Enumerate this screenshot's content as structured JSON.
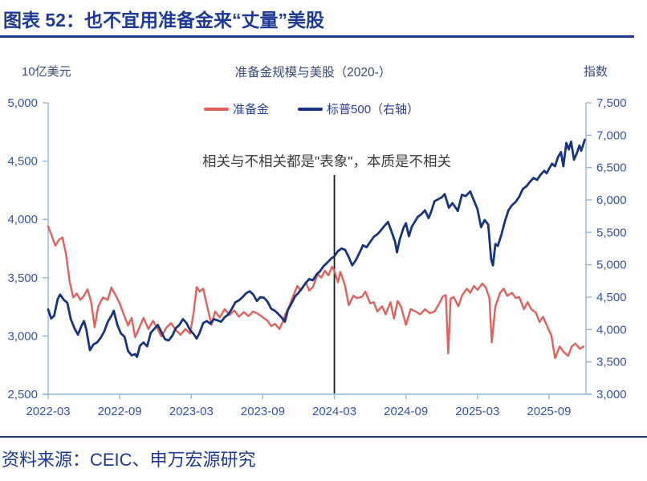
{
  "header": {
    "title": "图表 52：也不宜用准备金来“丈量”美股"
  },
  "chart": {
    "title": "准备金规模与美股（2020-）",
    "left_axis_unit": "10亿美元",
    "right_axis_unit": "指数",
    "annotation": "相关与不相关都是\"表象\"，本质是不相关",
    "legend": [
      {
        "label": "准备金",
        "color": "#E0605C"
      },
      {
        "label": "标普500（右轴）",
        "color": "#16357E"
      }
    ]
  },
  "chart_data": {
    "type": "line",
    "title": "准备金规模与美股（2020-）",
    "grid": false,
    "legend_position": "top-center",
    "x_axis": {
      "tick_labels": [
        "2022-03",
        "2022-09",
        "2023-03",
        "2023-09",
        "2024-03",
        "2024-09",
        "2025-03",
        "2025-09"
      ],
      "tick_months": [
        0,
        6,
        12,
        18,
        24,
        30,
        36,
        42
      ],
      "month_zero": "2022-03",
      "month_span": 45.1
    },
    "left_axis": {
      "label": "10亿美元",
      "min": 2500,
      "max": 5000,
      "tick_values": [
        5000,
        4500,
        4000,
        3500,
        3000,
        2500
      ],
      "tick_labels": [
        "5,000",
        "4,500",
        "4,000",
        "3,500",
        "3,000",
        "2,500"
      ]
    },
    "right_axis": {
      "label": "指数",
      "min": 3000,
      "max": 7500,
      "tick_values": [
        7500,
        7000,
        6500,
        6000,
        5500,
        5000,
        4500,
        4000,
        3500,
        3000
      ],
      "tick_labels": [
        "7,500",
        "7,000",
        "6,500",
        "6,000",
        "5,500",
        "5,000",
        "4,500",
        "4,000",
        "3,500",
        "3,000"
      ]
    },
    "event_line": {
      "month": 24,
      "at_label": "2024-03",
      "color": "#1a1a1a"
    },
    "axis_color": "#8FB8DA",
    "series": [
      {
        "key": "reserves",
        "name": "准备金",
        "axis": "left",
        "color": "#E0605C",
        "width": 2.4,
        "points": [
          [
            0,
            3940
          ],
          [
            0.3,
            3860
          ],
          [
            0.6,
            3775
          ],
          [
            0.9,
            3825
          ],
          [
            1.2,
            3845
          ],
          [
            1.5,
            3700
          ],
          [
            1.8,
            3470
          ],
          [
            2.1,
            3330
          ],
          [
            2.4,
            3365
          ],
          [
            2.7,
            3310
          ],
          [
            3,
            3345
          ],
          [
            3.3,
            3400
          ],
          [
            3.6,
            3295
          ],
          [
            3.9,
            3075
          ],
          [
            4.2,
            3255
          ],
          [
            4.6,
            3330
          ],
          [
            5,
            3310
          ],
          [
            5.3,
            3415
          ],
          [
            5.6,
            3360
          ],
          [
            6,
            3280
          ],
          [
            6.3,
            3195
          ],
          [
            6.7,
            3090
          ],
          [
            7,
            3155
          ],
          [
            7.3,
            2990
          ],
          [
            7.7,
            3085
          ],
          [
            8,
            3155
          ],
          [
            8.4,
            3060
          ],
          [
            8.8,
            3130
          ],
          [
            9.1,
            3075
          ],
          [
            9.5,
            2995
          ],
          [
            9.9,
            3070
          ],
          [
            10.3,
            3110
          ],
          [
            10.7,
            3050
          ],
          [
            11.1,
            3010
          ],
          [
            11.5,
            3060
          ],
          [
            11.9,
            3020
          ],
          [
            12.2,
            3200
          ],
          [
            12.45,
            3420
          ],
          [
            12.7,
            3380
          ],
          [
            13,
            3405
          ],
          [
            13.3,
            3270
          ],
          [
            13.7,
            3095
          ],
          [
            14,
            3210
          ],
          [
            14.4,
            3160
          ],
          [
            14.8,
            3230
          ],
          [
            15.2,
            3180
          ],
          [
            15.6,
            3220
          ],
          [
            16,
            3165
          ],
          [
            16.4,
            3205
          ],
          [
            16.8,
            3170
          ],
          [
            17.2,
            3210
          ],
          [
            17.6,
            3190
          ],
          [
            18,
            3160
          ],
          [
            18.4,
            3130
          ],
          [
            18.7,
            3085
          ],
          [
            19,
            3105
          ],
          [
            19.4,
            3060
          ],
          [
            19.7,
            3130
          ],
          [
            19.9,
            3190
          ],
          [
            20.2,
            3250
          ],
          [
            20.5,
            3330
          ],
          [
            20.9,
            3430
          ],
          [
            21.2,
            3390
          ],
          [
            21.6,
            3460
          ],
          [
            21.9,
            3390
          ],
          [
            22.2,
            3420
          ],
          [
            22.6,
            3530
          ],
          [
            22.9,
            3500
          ],
          [
            23.2,
            3560
          ],
          [
            23.5,
            3520
          ],
          [
            23.8,
            3595
          ],
          [
            24,
            3560
          ],
          [
            24.3,
            3460
          ],
          [
            24.5,
            3550
          ],
          [
            24.9,
            3430
          ],
          [
            25.2,
            3265
          ],
          [
            25.6,
            3345
          ],
          [
            25.9,
            3325
          ],
          [
            26.3,
            3335
          ],
          [
            26.6,
            3380
          ],
          [
            27,
            3280
          ],
          [
            27.3,
            3290
          ],
          [
            27.6,
            3210
          ],
          [
            28,
            3255
          ],
          [
            28.3,
            3185
          ],
          [
            28.7,
            3290
          ],
          [
            29,
            3150
          ],
          [
            29.3,
            3300
          ],
          [
            29.6,
            3250
          ],
          [
            30,
            3095
          ],
          [
            30.4,
            3230
          ],
          [
            30.8,
            3210
          ],
          [
            31.2,
            3185
          ],
          [
            31.6,
            3230
          ],
          [
            32,
            3195
          ],
          [
            32.4,
            3210
          ],
          [
            32.8,
            3280
          ],
          [
            33.1,
            3340
          ],
          [
            33.35,
            3350
          ],
          [
            33.55,
            2850
          ],
          [
            33.75,
            3320
          ],
          [
            34,
            3335
          ],
          [
            34.4,
            3255
          ],
          [
            34.7,
            3345
          ],
          [
            35.1,
            3405
          ],
          [
            35.4,
            3370
          ],
          [
            35.7,
            3430
          ],
          [
            36,
            3395
          ],
          [
            36.4,
            3450
          ],
          [
            36.7,
            3415
          ],
          [
            37,
            3325
          ],
          [
            37.2,
            2945
          ],
          [
            37.5,
            3255
          ],
          [
            37.9,
            3370
          ],
          [
            38.2,
            3405
          ],
          [
            38.5,
            3345
          ],
          [
            38.9,
            3370
          ],
          [
            39.2,
            3325
          ],
          [
            39.5,
            3335
          ],
          [
            39.9,
            3230
          ],
          [
            40.2,
            3290
          ],
          [
            40.5,
            3230
          ],
          [
            40.9,
            3200
          ],
          [
            41.2,
            3120
          ],
          [
            41.5,
            3165
          ],
          [
            41.9,
            3070
          ],
          [
            42.2,
            3005
          ],
          [
            42.5,
            2810
          ],
          [
            42.9,
            2910
          ],
          [
            43.2,
            2865
          ],
          [
            43.6,
            2830
          ],
          [
            43.9,
            2910
          ],
          [
            44.2,
            2935
          ],
          [
            44.6,
            2890
          ],
          [
            44.9,
            2910
          ]
        ]
      },
      {
        "key": "sp500",
        "name": "标普500（右轴）",
        "axis": "right",
        "color": "#16357E",
        "width": 2.8,
        "points": [
          [
            0,
            4310
          ],
          [
            0.25,
            4170
          ],
          [
            0.5,
            4210
          ],
          [
            0.8,
            4470
          ],
          [
            1,
            4540
          ],
          [
            1.3,
            4460
          ],
          [
            1.6,
            4415
          ],
          [
            1.9,
            4160
          ],
          [
            2.2,
            4020
          ],
          [
            2.5,
            3920
          ],
          [
            2.8,
            4060
          ],
          [
            3,
            4130
          ],
          [
            3.2,
            4000
          ],
          [
            3.5,
            3680
          ],
          [
            3.8,
            3770
          ],
          [
            4.1,
            3800
          ],
          [
            4.4,
            3870
          ],
          [
            4.7,
            3970
          ],
          [
            5,
            4120
          ],
          [
            5.3,
            4210
          ],
          [
            5.5,
            4290
          ],
          [
            5.8,
            4070
          ],
          [
            6.1,
            3940
          ],
          [
            6.4,
            3890
          ],
          [
            6.7,
            3670
          ],
          [
            7,
            3600
          ],
          [
            7.3,
            3620
          ],
          [
            7.45,
            3577
          ],
          [
            7.7,
            3750
          ],
          [
            8,
            3800
          ],
          [
            8.3,
            3740
          ],
          [
            8.6,
            3950
          ],
          [
            8.9,
            4010
          ],
          [
            9.2,
            4070
          ],
          [
            9.5,
            3960
          ],
          [
            9.8,
            3850
          ],
          [
            10.1,
            3830
          ],
          [
            10.4,
            3900
          ],
          [
            10.7,
            4020
          ],
          [
            11,
            4070
          ],
          [
            11.3,
            4160
          ],
          [
            11.6,
            4100
          ],
          [
            11.9,
            3990
          ],
          [
            12.2,
            3930
          ],
          [
            12.45,
            3860
          ],
          [
            12.7,
            3950
          ],
          [
            13,
            4100
          ],
          [
            13.3,
            4130
          ],
          [
            13.6,
            4090
          ],
          [
            13.9,
            4160
          ],
          [
            14.2,
            4140
          ],
          [
            14.5,
            4120
          ],
          [
            14.8,
            4190
          ],
          [
            15.1,
            4230
          ],
          [
            15.4,
            4320
          ],
          [
            15.7,
            4420
          ],
          [
            16,
            4450
          ],
          [
            16.3,
            4500
          ],
          [
            16.6,
            4560
          ],
          [
            16.9,
            4590
          ],
          [
            17.2,
            4540
          ],
          [
            17.5,
            4440
          ],
          [
            17.8,
            4500
          ],
          [
            18.1,
            4490
          ],
          [
            18.4,
            4430
          ],
          [
            18.7,
            4320
          ],
          [
            19,
            4290
          ],
          [
            19.3,
            4240
          ],
          [
            19.6,
            4180
          ],
          [
            19.85,
            4120
          ],
          [
            20.1,
            4300
          ],
          [
            20.4,
            4400
          ],
          [
            20.7,
            4510
          ],
          [
            21,
            4570
          ],
          [
            21.3,
            4640
          ],
          [
            21.6,
            4720
          ],
          [
            21.9,
            4780
          ],
          [
            22.2,
            4760
          ],
          [
            22.5,
            4850
          ],
          [
            22.8,
            4900
          ],
          [
            23.1,
            4980
          ],
          [
            23.4,
            5030
          ],
          [
            23.7,
            5090
          ],
          [
            24,
            5130
          ],
          [
            24.3,
            5210
          ],
          [
            24.6,
            5250
          ],
          [
            24.9,
            5230
          ],
          [
            25.2,
            5120
          ],
          [
            25.5,
            4990
          ],
          [
            25.8,
            5070
          ],
          [
            26.1,
            5180
          ],
          [
            26.4,
            5300
          ],
          [
            26.7,
            5270
          ],
          [
            27,
            5350
          ],
          [
            27.3,
            5430
          ],
          [
            27.6,
            5470
          ],
          [
            27.9,
            5530
          ],
          [
            28.2,
            5600
          ],
          [
            28.5,
            5660
          ],
          [
            28.8,
            5510
          ],
          [
            29.1,
            5350
          ],
          [
            29.25,
            5190
          ],
          [
            29.5,
            5400
          ],
          [
            29.8,
            5570
          ],
          [
            30,
            5640
          ],
          [
            30.25,
            5440
          ],
          [
            30.5,
            5590
          ],
          [
            30.8,
            5680
          ],
          [
            31,
            5740
          ],
          [
            31.3,
            5780
          ],
          [
            31.6,
            5840
          ],
          [
            31.9,
            5720
          ],
          [
            32.1,
            5810
          ],
          [
            32.4,
            5980
          ],
          [
            32.7,
            6010
          ],
          [
            33,
            6040
          ],
          [
            33.25,
            6090
          ],
          [
            33.6,
            5880
          ],
          [
            33.9,
            5950
          ],
          [
            34.1,
            5900
          ],
          [
            34.35,
            5830
          ],
          [
            34.7,
            6080
          ],
          [
            35,
            6060
          ],
          [
            35.4,
            6130
          ],
          [
            35.7,
            5990
          ],
          [
            36,
            5860
          ],
          [
            36.3,
            5580
          ],
          [
            36.6,
            5690
          ],
          [
            36.9,
            5620
          ],
          [
            37,
            5400
          ],
          [
            37.15,
            5080
          ],
          [
            37.3,
            4990
          ],
          [
            37.5,
            5320
          ],
          [
            37.7,
            5290
          ],
          [
            38,
            5460
          ],
          [
            38.3,
            5670
          ],
          [
            38.6,
            5840
          ],
          [
            38.9,
            5920
          ],
          [
            39.2,
            5970
          ],
          [
            39.5,
            6050
          ],
          [
            39.8,
            6170
          ],
          [
            40.1,
            6210
          ],
          [
            40.4,
            6280
          ],
          [
            40.7,
            6340
          ],
          [
            41,
            6310
          ],
          [
            41.3,
            6390
          ],
          [
            41.6,
            6450
          ],
          [
            41.8,
            6410
          ],
          [
            42,
            6480
          ],
          [
            42.25,
            6560
          ],
          [
            42.5,
            6520
          ],
          [
            42.75,
            6660
          ],
          [
            43,
            6740
          ],
          [
            43.2,
            6520
          ],
          [
            43.45,
            6880
          ],
          [
            43.65,
            6780
          ],
          [
            43.85,
            6900
          ],
          [
            44.1,
            6620
          ],
          [
            44.35,
            6730
          ],
          [
            44.55,
            6840
          ],
          [
            44.7,
            6760
          ],
          [
            45,
            6930
          ]
        ]
      }
    ]
  },
  "footer": {
    "source": "资料来源：CEIC、申万宏源研究"
  }
}
